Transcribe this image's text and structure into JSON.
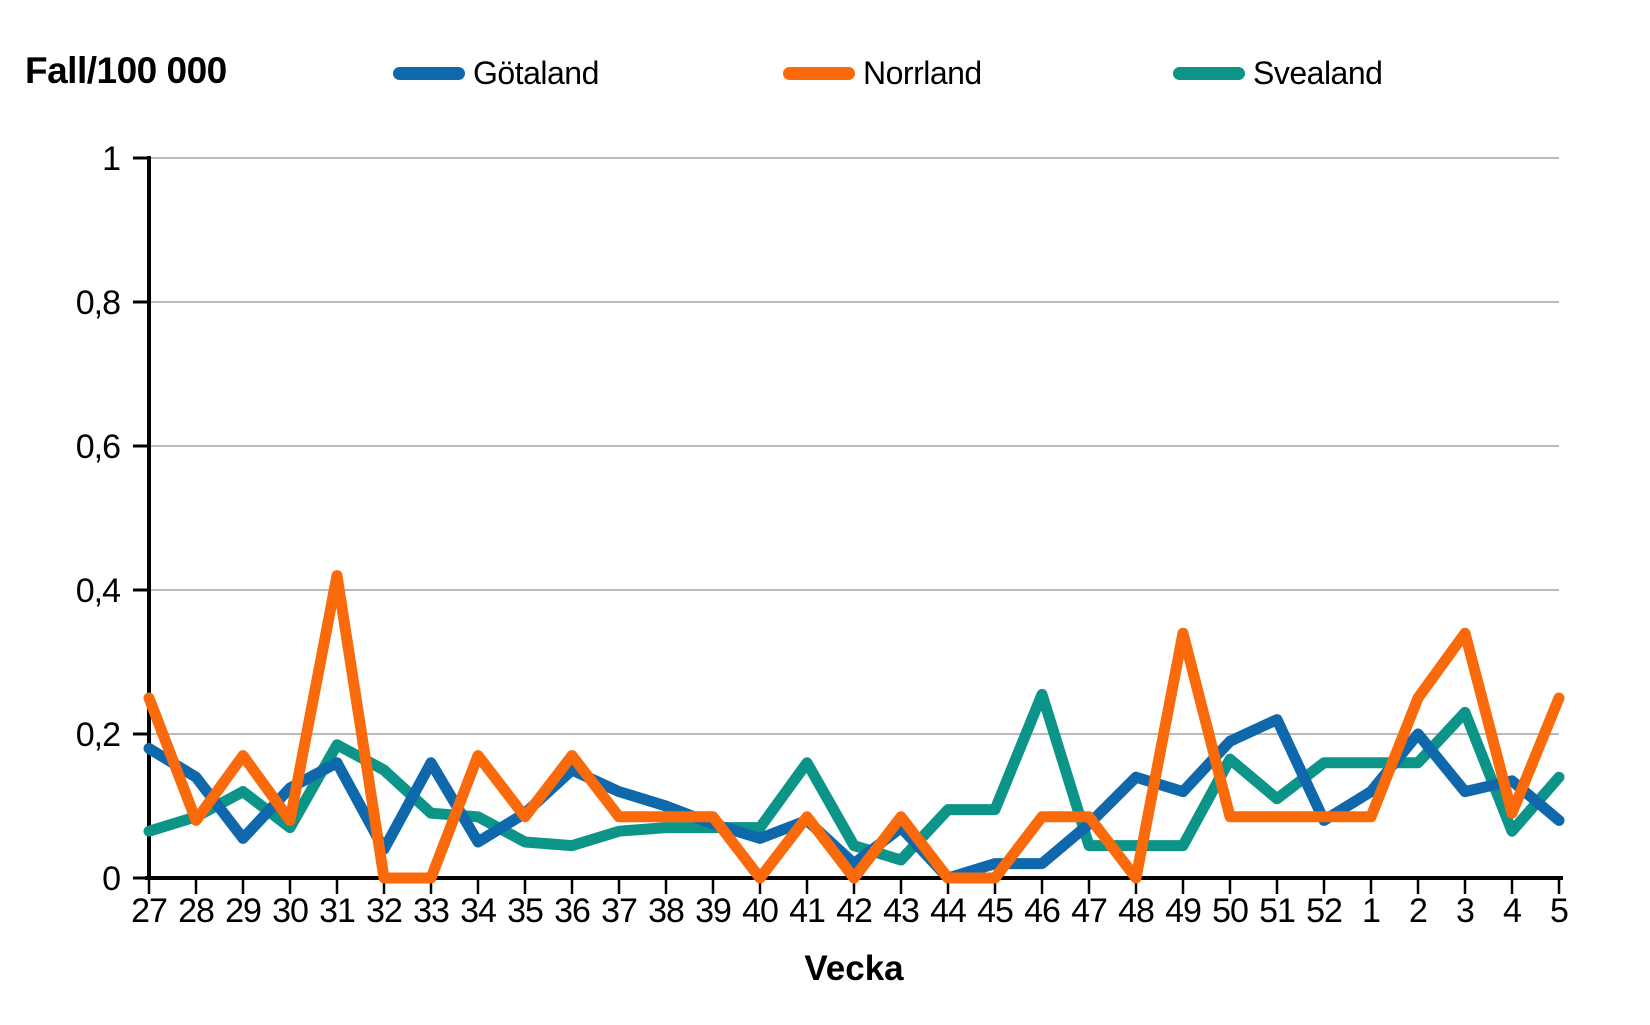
{
  "header": {
    "title": "Fall/100 000"
  },
  "legend": [
    {
      "id": "gotaland",
      "label": "Götaland",
      "color": "#0f67ac"
    },
    {
      "id": "norrland",
      "label": "Norrland",
      "color": "#fa6a0a"
    },
    {
      "id": "svealand",
      "label": "Svealand",
      "color": "#0c9488"
    }
  ],
  "chart_data": {
    "type": "line",
    "title": "Fall/100 000",
    "xlabel": "Vecka",
    "ylabel": "Fall/100 000",
    "ylim": [
      0,
      1
    ],
    "grid": "horizontal",
    "legend_position": "top",
    "colors": {
      "grid": "#b9b9b9",
      "axis": "#000000"
    },
    "y_ticks": [
      0,
      0.2,
      0.4,
      0.6,
      0.8,
      1
    ],
    "y_tick_labels": [
      "0",
      "0,2",
      "0,4",
      "0,6",
      "0,8",
      "1"
    ],
    "categories": [
      "27",
      "28",
      "29",
      "30",
      "31",
      "32",
      "33",
      "34",
      "35",
      "36",
      "37",
      "38",
      "39",
      "40",
      "41",
      "42",
      "43",
      "44",
      "45",
      "46",
      "47",
      "48",
      "49",
      "50",
      "51",
      "52",
      "1",
      "2",
      "3",
      "4",
      "5"
    ],
    "draw_order": [
      "Svealand",
      "Götaland",
      "Norrland"
    ],
    "series": [
      {
        "id": "gotaland",
        "name": "Götaland",
        "color": "#0f67ac",
        "values": [
          0.18,
          0.14,
          0.055,
          0.125,
          0.16,
          0.04,
          0.16,
          0.05,
          0.09,
          0.15,
          0.12,
          0.1,
          0.075,
          0.055,
          0.08,
          0.02,
          0.07,
          0.0,
          0.02,
          0.02,
          0.075,
          0.14,
          0.12,
          0.19,
          0.22,
          0.08,
          0.12,
          0.2,
          0.12,
          0.135,
          0.08
        ]
      },
      {
        "id": "norrland",
        "name": "Norrland",
        "color": "#fa6a0a",
        "values": [
          0.25,
          0.08,
          0.17,
          0.08,
          0.42,
          0.0,
          0.0,
          0.17,
          0.085,
          0.17,
          0.085,
          0.085,
          0.085,
          0.0,
          0.085,
          0.0,
          0.085,
          0.0,
          0.0,
          0.085,
          0.085,
          0.0,
          0.34,
          0.085,
          0.085,
          0.085,
          0.085,
          0.25,
          0.34,
          0.09,
          0.25
        ]
      },
      {
        "id": "svealand",
        "name": "Svealand",
        "color": "#0c9488",
        "values": [
          0.065,
          0.085,
          0.12,
          0.07,
          0.185,
          0.15,
          0.09,
          0.085,
          0.05,
          0.045,
          0.065,
          0.07,
          0.07,
          0.07,
          0.16,
          0.045,
          0.025,
          0.095,
          0.095,
          0.255,
          0.045,
          0.045,
          0.045,
          0.165,
          0.11,
          0.16,
          0.16,
          0.16,
          0.23,
          0.065,
          0.14
        ]
      }
    ]
  }
}
